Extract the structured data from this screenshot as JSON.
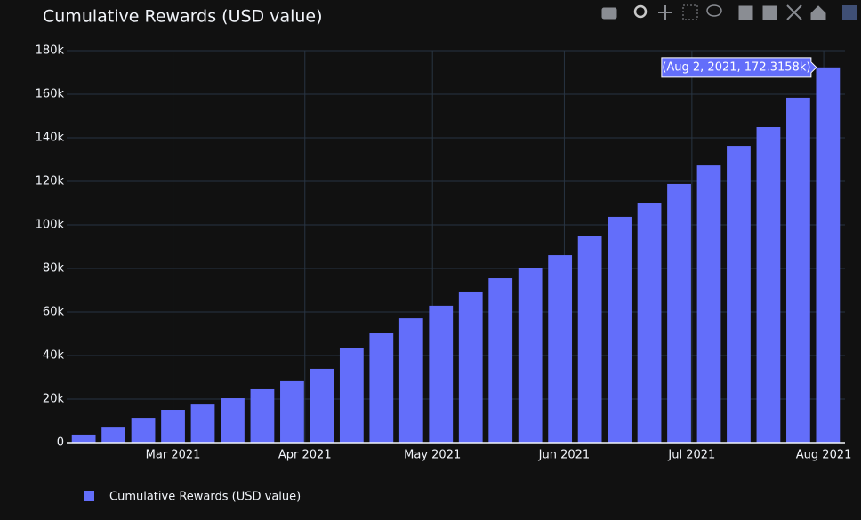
{
  "chart_data": {
    "type": "bar",
    "title": "Cumulative Rewards (USD value)",
    "x": [
      "2021-02-08",
      "2021-02-15",
      "2021-02-22",
      "2021-03-01",
      "2021-03-08",
      "2021-03-15",
      "2021-03-22",
      "2021-03-29",
      "2021-04-05",
      "2021-04-12",
      "2021-04-19",
      "2021-04-26",
      "2021-05-03",
      "2021-05-10",
      "2021-05-17",
      "2021-05-24",
      "2021-05-31",
      "2021-06-07",
      "2021-06-14",
      "2021-06-21",
      "2021-06-28",
      "2021-07-05",
      "2021-07-12",
      "2021-07-19",
      "2021-07-26",
      "2021-08-02"
    ],
    "series": [
      {
        "name": "Cumulative Rewards (USD value)",
        "color": "#636efa",
        "values": [
          3700,
          7300,
          11400,
          15100,
          17500,
          20400,
          24500,
          28200,
          33900,
          43300,
          50200,
          57100,
          62900,
          69400,
          75500,
          80000,
          86100,
          94700,
          103700,
          110200,
          118800,
          127300,
          136300,
          144900,
          158400,
          172315.8
        ]
      }
    ],
    "xlim": [
      "2021-02-04",
      "2021-08-06"
    ],
    "xticks": [
      {
        "value": "2021-03-01",
        "label": "Mar 2021"
      },
      {
        "value": "2021-04-01",
        "label": "Apr 2021"
      },
      {
        "value": "2021-05-01",
        "label": "May 2021"
      },
      {
        "value": "2021-06-01",
        "label": "Jun 2021"
      },
      {
        "value": "2021-07-01",
        "label": "Jul 2021"
      },
      {
        "value": "2021-08-01",
        "label": "Aug 2021"
      }
    ],
    "ylim": [
      0,
      180000
    ],
    "yticks": [
      0,
      {
        "value": 20000,
        "label": "20k"
      },
      {
        "value": 40000,
        "label": "40k"
      },
      {
        "value": 60000,
        "label": "60k"
      },
      {
        "value": 80000,
        "label": "80k"
      },
      {
        "value": 100000,
        "label": "100k"
      },
      {
        "value": 120000,
        "label": "120k"
      },
      {
        "value": 140000,
        "label": "140k"
      },
      {
        "value": 160000,
        "label": "160k"
      },
      {
        "value": 180000,
        "label": "180k"
      }
    ],
    "grid": true,
    "legend": "bottom-left",
    "hover_label": "(Aug 2, 2021, 172.3158k)"
  }
}
